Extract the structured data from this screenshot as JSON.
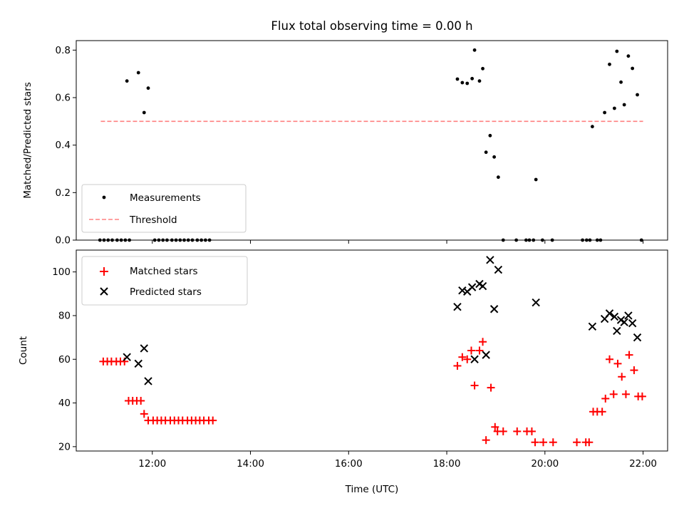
{
  "figure": {
    "title": "Flux total observing time = 0.00 h"
  },
  "chart_data": [
    {
      "type": "scatter",
      "ylabel": "Matched/Predicted stars",
      "xlabel": "",
      "xlim": [
        "10:27",
        "22:30"
      ],
      "ylim": [
        0,
        0.84
      ],
      "yticks": [
        0.0,
        0.2,
        0.4,
        0.6,
        0.8
      ],
      "ytick_labels": [
        "0.0",
        "0.2",
        "0.4",
        "0.6",
        "0.8"
      ],
      "legend_position": "lower-left",
      "legend": [
        "Measurements",
        "Threshold"
      ],
      "series": [
        {
          "name": "Measurements",
          "marker": "dot",
          "color": "#000000",
          "points": [
            [
              "10:56",
              0.0
            ],
            [
              "11:01",
              0.0
            ],
            [
              "11:06",
              0.0
            ],
            [
              "11:11",
              0.0
            ],
            [
              "11:17",
              0.0
            ],
            [
              "11:22",
              0.0
            ],
            [
              "11:27",
              0.0
            ],
            [
              "11:32",
              0.0
            ],
            [
              "11:29",
              0.67
            ],
            [
              "11:43",
              0.705
            ],
            [
              "11:50",
              0.537
            ],
            [
              "11:55",
              0.64
            ],
            [
              "12:03",
              0.0
            ],
            [
              "12:08",
              0.0
            ],
            [
              "12:13",
              0.0
            ],
            [
              "12:18",
              0.0
            ],
            [
              "12:24",
              0.0
            ],
            [
              "12:29",
              0.0
            ],
            [
              "12:34",
              0.0
            ],
            [
              "12:39",
              0.0
            ],
            [
              "12:44",
              0.0
            ],
            [
              "12:49",
              0.0
            ],
            [
              "12:55",
              0.0
            ],
            [
              "13:00",
              0.0
            ],
            [
              "13:05",
              0.0
            ],
            [
              "13:10",
              0.0
            ],
            [
              "18:13",
              0.678
            ],
            [
              "18:19",
              0.663
            ],
            [
              "18:25",
              0.66
            ],
            [
              "18:31",
              0.68
            ],
            [
              "18:34",
              0.8
            ],
            [
              "18:40",
              0.67
            ],
            [
              "18:44",
              0.722
            ],
            [
              "18:48",
              0.37
            ],
            [
              "18:53",
              0.44
            ],
            [
              "18:58",
              0.35
            ],
            [
              "19:03",
              0.265
            ],
            [
              "19:09",
              0.0
            ],
            [
              "19:25",
              0.0
            ],
            [
              "19:37",
              0.0
            ],
            [
              "19:41",
              0.0
            ],
            [
              "19:46",
              0.0
            ],
            [
              "19:49",
              0.255
            ],
            [
              "19:57",
              0.0
            ],
            [
              "20:09",
              0.0
            ],
            [
              "20:46",
              0.0
            ],
            [
              "20:51",
              0.0
            ],
            [
              "20:55",
              0.0
            ],
            [
              "21:04",
              0.0
            ],
            [
              "21:08",
              0.0
            ],
            [
              "20:58",
              0.478
            ],
            [
              "21:13",
              0.537
            ],
            [
              "21:19",
              0.74
            ],
            [
              "21:25",
              0.555
            ],
            [
              "21:28",
              0.795
            ],
            [
              "21:33",
              0.665
            ],
            [
              "21:37",
              0.57
            ],
            [
              "21:42",
              0.775
            ],
            [
              "21:47",
              0.723
            ],
            [
              "21:53",
              0.612
            ],
            [
              "21:58",
              0.0
            ]
          ]
        },
        {
          "name": "Threshold",
          "style": "dashed",
          "color": "#ff8080",
          "points": [
            [
              "10:57",
              0.5
            ],
            [
              "22:00",
              0.5
            ]
          ]
        }
      ]
    },
    {
      "type": "scatter",
      "ylabel": "Count",
      "xlabel": "Time (UTC)",
      "xlim": [
        "10:27",
        "22:30"
      ],
      "ylim": [
        18,
        110
      ],
      "yticks": [
        20,
        40,
        60,
        80,
        100
      ],
      "ytick_labels": [
        "20",
        "40",
        "60",
        "80",
        "100"
      ],
      "xticks": [
        "12:00",
        "14:00",
        "16:00",
        "18:00",
        "20:00",
        "22:00"
      ],
      "xtick_labels": [
        "12:00",
        "14:00",
        "16:00",
        "18:00",
        "20:00",
        "22:00"
      ],
      "legend_position": "upper-left",
      "legend": [
        "Matched stars",
        "Predicted stars"
      ],
      "series": [
        {
          "name": "Matched stars",
          "marker": "plus",
          "color": "#ff0000",
          "points": [
            [
              "11:00",
              59
            ],
            [
              "11:05",
              59
            ],
            [
              "11:10",
              59
            ],
            [
              "11:16",
              59
            ],
            [
              "11:21",
              59
            ],
            [
              "11:26",
              59
            ],
            [
              "11:31",
              41
            ],
            [
              "11:36",
              41
            ],
            [
              "11:41",
              41
            ],
            [
              "11:46",
              41
            ],
            [
              "11:50",
              35
            ],
            [
              "11:55",
              32
            ],
            [
              "12:01",
              32
            ],
            [
              "12:06",
              32
            ],
            [
              "12:11",
              32
            ],
            [
              "12:16",
              32
            ],
            [
              "12:22",
              32
            ],
            [
              "12:27",
              32
            ],
            [
              "12:32",
              32
            ],
            [
              "12:37",
              32
            ],
            [
              "12:43",
              32
            ],
            [
              "12:48",
              32
            ],
            [
              "12:53",
              32
            ],
            [
              "12:58",
              32
            ],
            [
              "13:03",
              32
            ],
            [
              "13:09",
              32
            ],
            [
              "13:14",
              32
            ],
            [
              "18:13",
              57
            ],
            [
              "18:19",
              61
            ],
            [
              "18:25",
              60
            ],
            [
              "18:30",
              64
            ],
            [
              "18:34",
              48
            ],
            [
              "18:40",
              64
            ],
            [
              "18:44",
              68
            ],
            [
              "18:48",
              23
            ],
            [
              "18:54",
              47
            ],
            [
              "18:59",
              29
            ],
            [
              "19:02",
              27
            ],
            [
              "19:09",
              27
            ],
            [
              "19:26",
              27
            ],
            [
              "19:38",
              27
            ],
            [
              "19:44",
              27
            ],
            [
              "19:48",
              22
            ],
            [
              "19:58",
              22
            ],
            [
              "20:10",
              22
            ],
            [
              "20:39",
              22
            ],
            [
              "20:50",
              22
            ],
            [
              "20:54",
              22
            ],
            [
              "20:59",
              36
            ],
            [
              "21:04",
              36
            ],
            [
              "21:10",
              36
            ],
            [
              "21:14",
              42
            ],
            [
              "21:19",
              60
            ],
            [
              "21:24",
              44
            ],
            [
              "21:29",
              58
            ],
            [
              "21:34",
              52
            ],
            [
              "21:39",
              44
            ],
            [
              "21:43",
              62
            ],
            [
              "21:49",
              55
            ],
            [
              "21:54",
              43
            ],
            [
              "21:59",
              43
            ]
          ]
        },
        {
          "name": "Predicted stars",
          "marker": "x",
          "color": "#000000",
          "points": [
            [
              "11:29",
              61
            ],
            [
              "11:43",
              58
            ],
            [
              "11:50",
              65
            ],
            [
              "11:55",
              50
            ],
            [
              "18:13",
              84
            ],
            [
              "18:19",
              91.5
            ],
            [
              "18:25",
              91
            ],
            [
              "18:31",
              93
            ],
            [
              "18:34",
              60
            ],
            [
              "18:40",
              94.5
            ],
            [
              "18:44",
              93.5
            ],
            [
              "18:48",
              62
            ],
            [
              "18:53",
              105.5
            ],
            [
              "18:58",
              83
            ],
            [
              "19:03",
              101
            ],
            [
              "19:49",
              86
            ],
            [
              "20:58",
              75
            ],
            [
              "21:13",
              78.5
            ],
            [
              "21:19",
              81
            ],
            [
              "21:25",
              79.5
            ],
            [
              "21:28",
              73
            ],
            [
              "21:33",
              78
            ],
            [
              "21:37",
              77
            ],
            [
              "21:42",
              80
            ],
            [
              "21:47",
              76.5
            ],
            [
              "21:53",
              70
            ]
          ]
        }
      ]
    }
  ]
}
